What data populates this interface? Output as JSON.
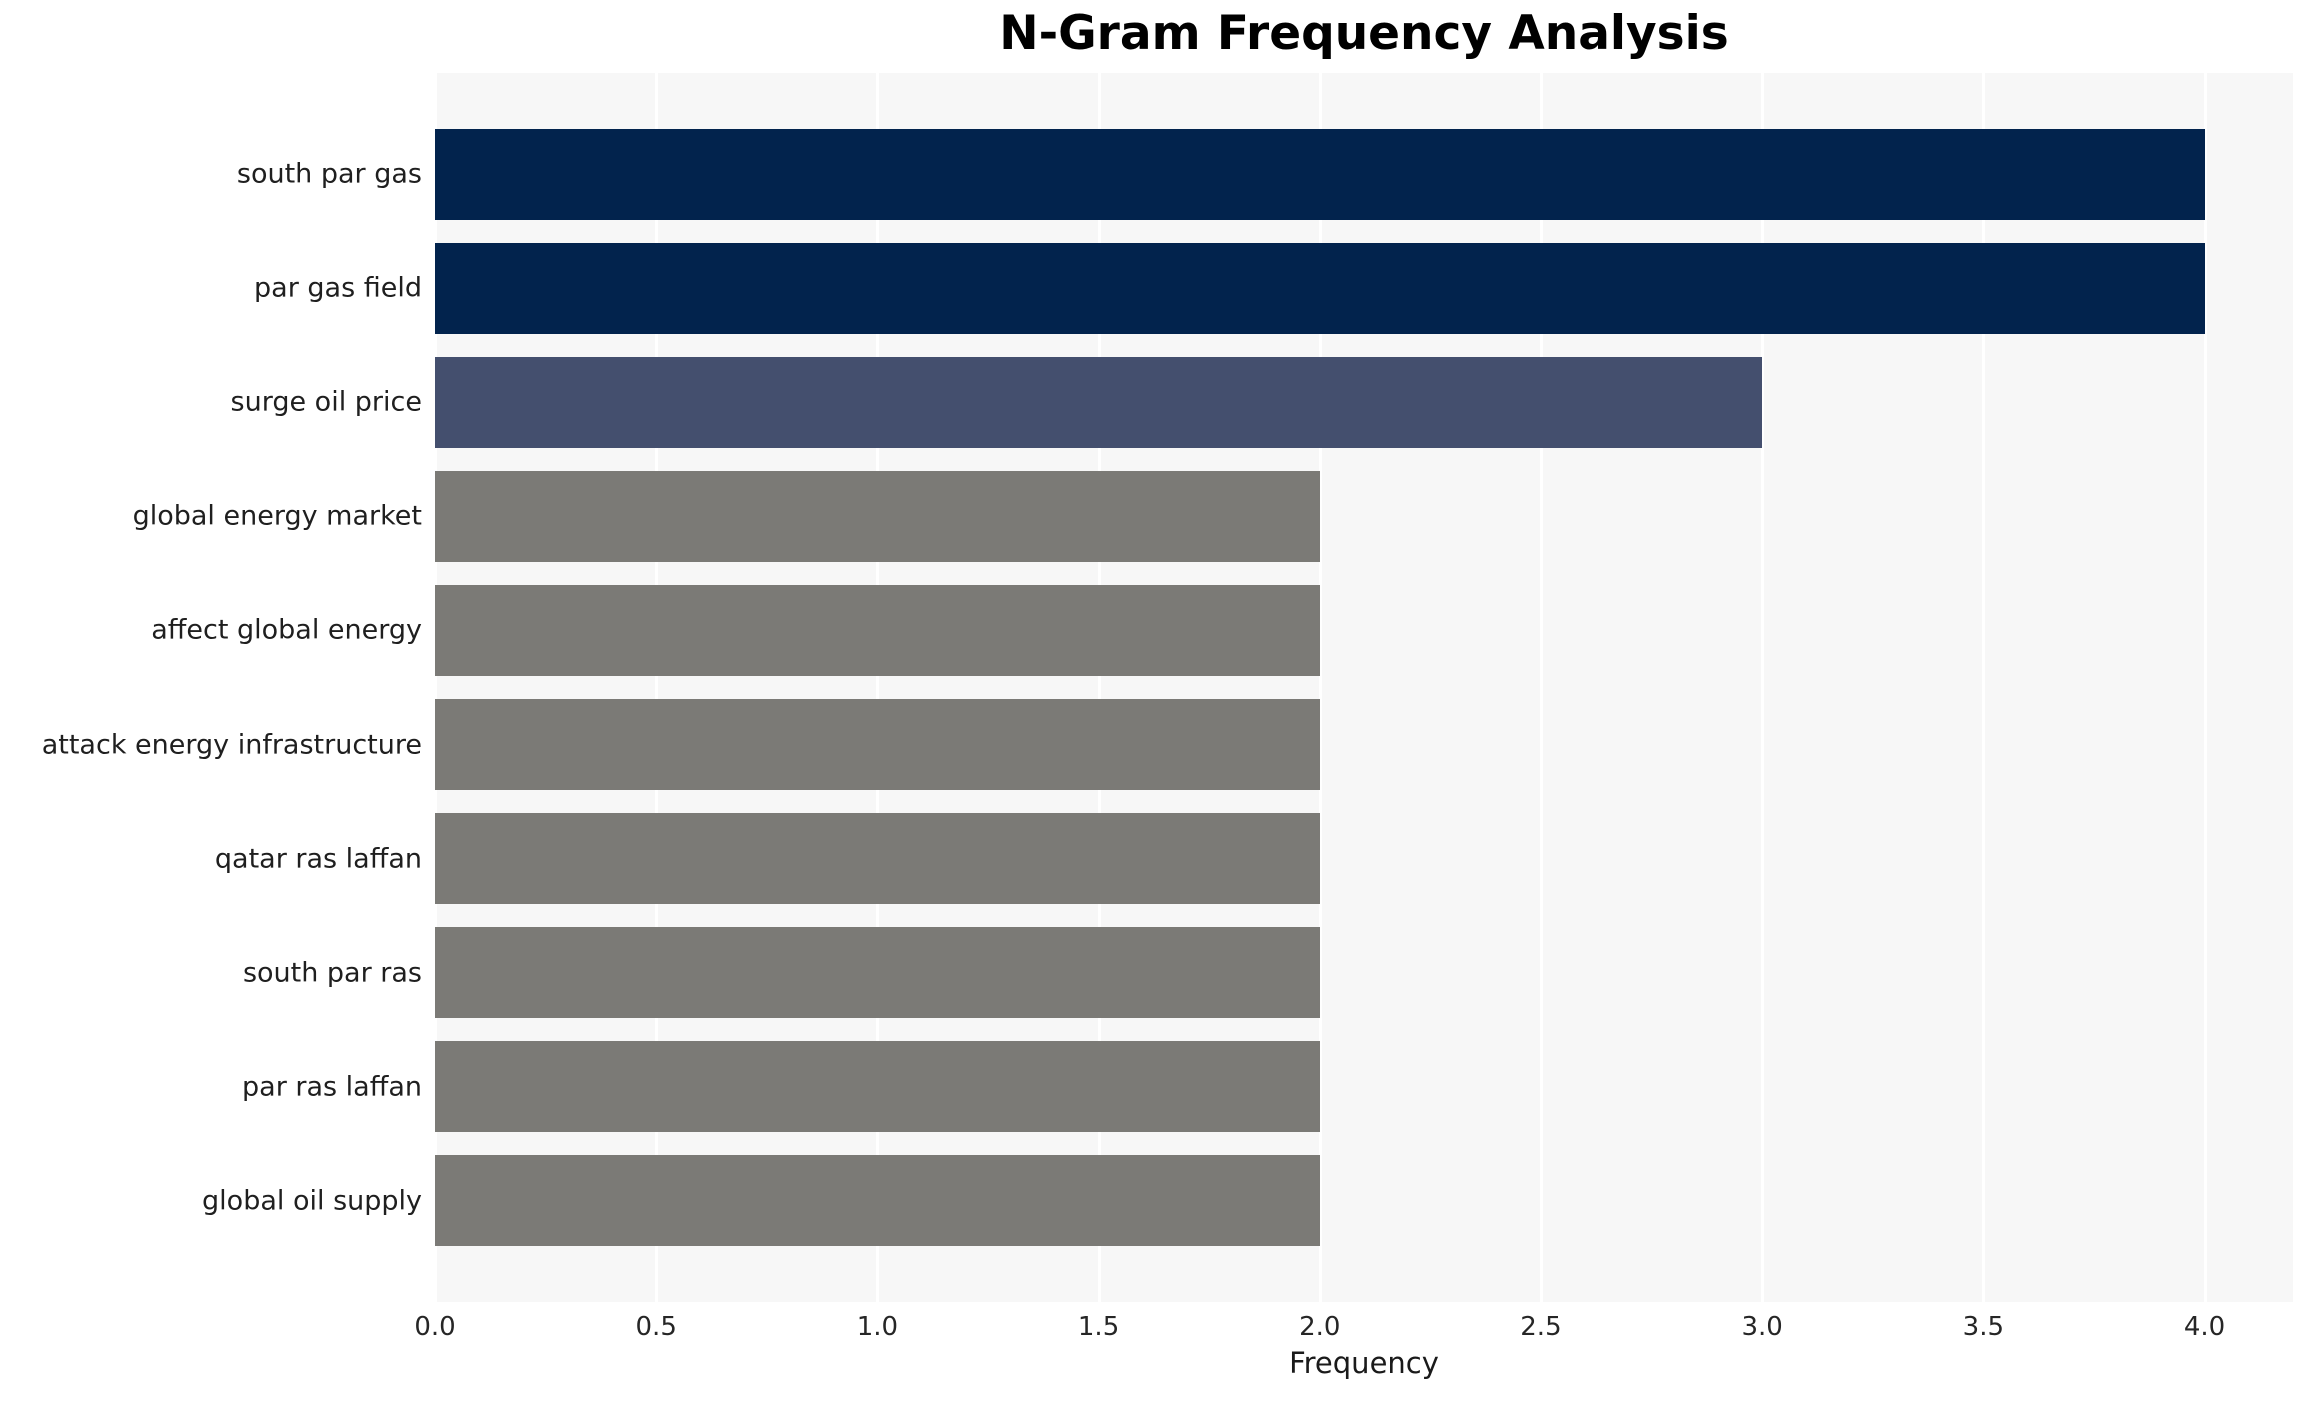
{
  "chart_data": {
    "type": "bar",
    "orientation": "horizontal",
    "title": "N-Gram Frequency Analysis",
    "xlabel": "Frequency",
    "ylabel": "",
    "categories": [
      "south par gas",
      "par gas field",
      "surge oil price",
      "global energy market",
      "affect global energy",
      "attack energy infrastructure",
      "qatar ras laffan",
      "south par ras",
      "par ras laffan",
      "global oil supply"
    ],
    "values": [
      4,
      4,
      3,
      2,
      2,
      2,
      2,
      2,
      2,
      2
    ],
    "bar_colors": [
      "#02234d",
      "#02234d",
      "#444f6e",
      "#7b7a76",
      "#7b7a76",
      "#7b7a76",
      "#7b7a76",
      "#7b7a76",
      "#7b7a76",
      "#7b7a76"
    ],
    "xlim": [
      0,
      4.2
    ],
    "xticks": [
      0.0,
      0.5,
      1.0,
      1.5,
      2.0,
      2.5,
      3.0,
      3.5,
      4.0
    ],
    "xtick_labels": [
      "0.0",
      "0.5",
      "1.0",
      "1.5",
      "2.0",
      "2.5",
      "3.0",
      "3.5",
      "4.0"
    ],
    "grid": true,
    "legend": false,
    "plot_background": "#f7f7f7",
    "grid_color": "#ffffff"
  }
}
